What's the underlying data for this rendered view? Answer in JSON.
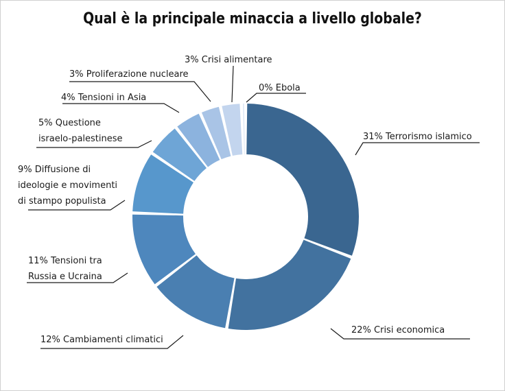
{
  "chart_data": {
    "type": "pie",
    "title": "Qual è la principale minaccia a livello globale?",
    "slices": [
      {
        "value": 31,
        "label_lines": [
          "31% Terrorismo islamico"
        ],
        "color": "#3a6690"
      },
      {
        "value": 22,
        "label_lines": [
          "22% Crisi economica"
        ],
        "color": "#42729f"
      },
      {
        "value": 12,
        "label_lines": [
          "12% Cambiamenti climatici"
        ],
        "color": "#4a7fb1"
      },
      {
        "value": 11,
        "label_lines": [
          "11% Tensioni tra",
          "Russia e Ucraina"
        ],
        "color": "#4e87bd"
      },
      {
        "value": 9,
        "label_lines": [
          "9% Diffusione di",
          "ideologie e movimenti",
          "di stampo populista"
        ],
        "color": "#5797cc"
      },
      {
        "value": 5,
        "label_lines": [
          "5% Questione",
          "israelo-palestinese"
        ],
        "color": "#6ea5d6"
      },
      {
        "value": 4,
        "label_lines": [
          "4% Tensioni in Asia"
        ],
        "color": "#8cb3de"
      },
      {
        "value": 3,
        "label_lines": [
          "3% Proliferazione nucleare"
        ],
        "color": "#a9c4e6"
      },
      {
        "value": 3,
        "label_lines": [
          "3% Crisi alimentare"
        ],
        "color": "#c3d5ee"
      },
      {
        "value": 0,
        "label_lines": [
          "0% Ebola"
        ],
        "color": "#dde7f5"
      }
    ]
  }
}
